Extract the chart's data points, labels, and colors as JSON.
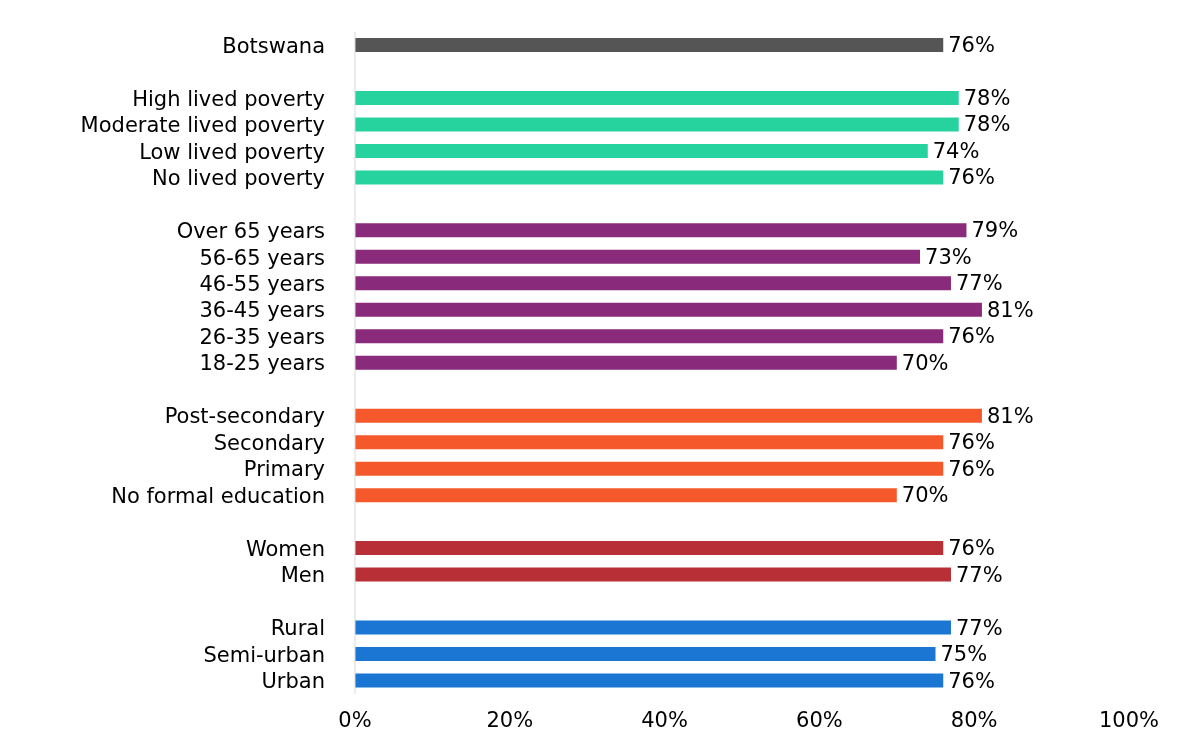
{
  "chart_data": {
    "type": "bar",
    "orientation": "horizontal",
    "categories": [
      "Botswana",
      null,
      "High lived poverty",
      "Moderate lived poverty",
      "Low lived poverty",
      "No lived poverty",
      null,
      "Over 65 years",
      "56-65 years",
      "46-55 years",
      "36-45 years",
      "26-35 years",
      "18-25 years",
      null,
      "Post-secondary",
      "Secondary",
      "Primary",
      "No formal education",
      null,
      "Women",
      "Men",
      null,
      "Rural",
      "Semi-urban",
      "Urban"
    ],
    "values": [
      76,
      null,
      78,
      78,
      74,
      76,
      null,
      79,
      73,
      77,
      81,
      76,
      70,
      null,
      81,
      76,
      76,
      70,
      null,
      76,
      77,
      null,
      77,
      75,
      76
    ],
    "colors": [
      "#555555",
      null,
      "#26d39f",
      "#26d39f",
      "#26d39f",
      "#26d39f",
      null,
      "#8a2a7a",
      "#8a2a7a",
      "#8a2a7a",
      "#8a2a7a",
      "#8a2a7a",
      "#8a2a7a",
      null,
      "#f5582a",
      "#f5582a",
      "#f5582a",
      "#f5582a",
      null,
      "#b82f35",
      "#b82f35",
      null,
      "#1a76d2",
      "#1a76d2",
      "#1a76d2"
    ],
    "value_labels": [
      "76%",
      null,
      "78%",
      "78%",
      "74%",
      "76%",
      null,
      "79%",
      "73%",
      "77%",
      "81%",
      "76%",
      "70%",
      null,
      "81%",
      "76%",
      "76%",
      "70%",
      null,
      "76%",
      "77%",
      null,
      "77%",
      "75%",
      "76%"
    ],
    "xlim": [
      0,
      100
    ],
    "xticks": [
      {
        "value": 0,
        "label": "0%"
      },
      {
        "value": 20,
        "label": "20%"
      },
      {
        "value": 40,
        "label": "40%"
      },
      {
        "value": 60,
        "label": "60%"
      },
      {
        "value": 80,
        "label": "80%"
      },
      {
        "value": 100,
        "label": "100%"
      }
    ],
    "grid": false,
    "legend": false
  }
}
